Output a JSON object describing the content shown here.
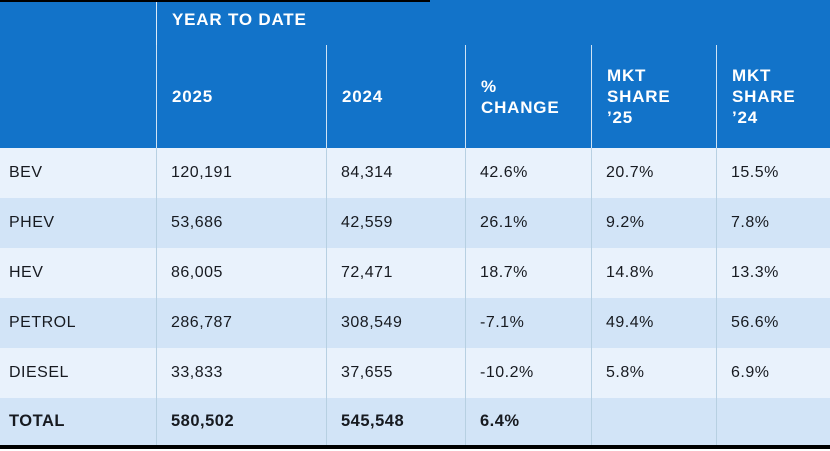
{
  "chart_data": {
    "type": "table",
    "title": "YEAR TO DATE",
    "columns": [
      "2025",
      "2024",
      "% CHANGE",
      "MKT SHARE ’25",
      "MKT SHARE ’24"
    ],
    "rows": [
      {
        "label": "BEV",
        "values": [
          "120,191",
          "84,314",
          "42.6%",
          "20.7%",
          "15.5%"
        ]
      },
      {
        "label": "PHEV",
        "values": [
          "53,686",
          "42,559",
          "26.1%",
          "9.2%",
          "7.8%"
        ]
      },
      {
        "label": "HEV",
        "values": [
          "86,005",
          "72,471",
          "18.7%",
          "14.8%",
          "13.3%"
        ]
      },
      {
        "label": "PETROL",
        "values": [
          "286,787",
          "308,549",
          "-7.1%",
          "49.4%",
          "56.6%"
        ]
      },
      {
        "label": "DIESEL",
        "values": [
          "33,833",
          "37,655",
          "-10.2%",
          "5.8%",
          "6.9%"
        ]
      },
      {
        "label": "TOTAL",
        "values": [
          "580,502",
          "545,548",
          "6.4%",
          "",
          ""
        ]
      }
    ],
    "layout": "rows alternate light/dark blue tint; TOTAL row bold; market-share cells empty on TOTAL row"
  },
  "colors": {
    "header_blue": "#1273c9",
    "row_light": "#e9f2fc",
    "row_dark": "#d2e4f7",
    "body_divider": "#b7d0e2",
    "header_divider": "#ffffff",
    "text_dark": "#171a20",
    "text_header": "#ffffff",
    "crop_line": "#000000"
  }
}
